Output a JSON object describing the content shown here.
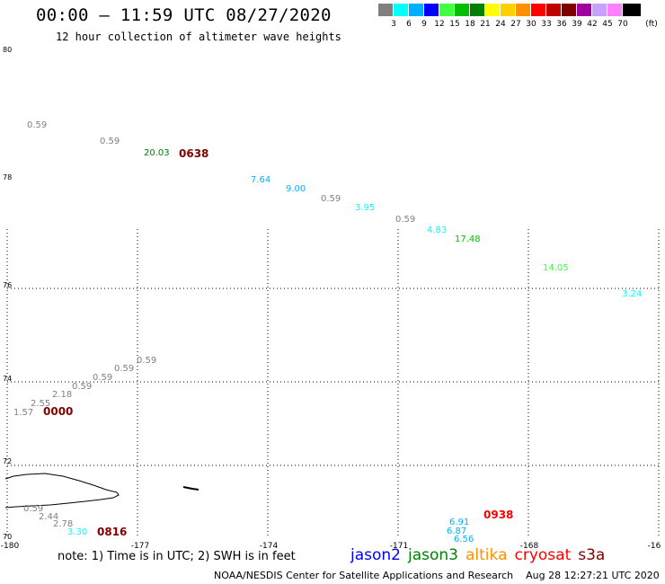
{
  "header": {
    "title": "00:00 – 11:59 UTC 08/27/2020",
    "subtitle": "12 hour collection of altimeter wave heights"
  },
  "legend": {
    "unit": "(ft)",
    "bins": [
      {
        "label": "3",
        "color": "#808080"
      },
      {
        "label": "6",
        "color": "#00ffff"
      },
      {
        "label": "9",
        "color": "#00b0ff"
      },
      {
        "label": "12",
        "color": "#0000ff"
      },
      {
        "label": "15",
        "color": "#40ff40"
      },
      {
        "label": "18",
        "color": "#00c000"
      },
      {
        "label": "21",
        "color": "#008000"
      },
      {
        "label": "24",
        "color": "#ffff00"
      },
      {
        "label": "27",
        "color": "#ffd000"
      },
      {
        "label": "30",
        "color": "#ff9000"
      },
      {
        "label": "33",
        "color": "#ff0000"
      },
      {
        "label": "36",
        "color": "#c00000"
      },
      {
        "label": "39",
        "color": "#800000"
      },
      {
        "label": "42",
        "color": "#a000a0"
      },
      {
        "label": "45",
        "color": "#c8a0ff"
      },
      {
        "label": "70",
        "color": "#ff80ff"
      },
      {
        "label": "",
        "color": "#000000"
      }
    ]
  },
  "map": {
    "lat_labels": [
      "80",
      "78",
      "76",
      "74",
      "72",
      "70"
    ],
    "lon_labels": [
      "-180",
      "-177",
      "-174",
      "-171",
      "-168",
      "-16"
    ],
    "wave_heights": [
      {
        "text": "0.59",
        "color": "#808080"
      },
      {
        "text": "0.59",
        "color": "#808080"
      },
      {
        "text": "20.03",
        "color": "#008000"
      },
      {
        "text": "7.64",
        "color": "#00b0ff"
      },
      {
        "text": "9.00",
        "color": "#00b0ff"
      },
      {
        "text": "0.59",
        "color": "#808080"
      },
      {
        "text": "3.95",
        "color": "#00ffff"
      },
      {
        "text": "0.59",
        "color": "#808080"
      },
      {
        "text": "4.83",
        "color": "#00ffff"
      },
      {
        "text": "17.48",
        "color": "#00c000"
      },
      {
        "text": "14.05",
        "color": "#40ff40"
      },
      {
        "text": "3.24",
        "color": "#00ffff"
      },
      {
        "text": "0.59",
        "color": "#808080"
      },
      {
        "text": "0.59",
        "color": "#808080"
      },
      {
        "text": "0.59",
        "color": "#808080"
      },
      {
        "text": "0.59",
        "color": "#808080"
      },
      {
        "text": "2.18",
        "color": "#808080"
      },
      {
        "text": "2.55",
        "color": "#808080"
      },
      {
        "text": "1.57",
        "color": "#808080"
      },
      {
        "text": "0.59",
        "color": "#808080"
      },
      {
        "text": "2.44",
        "color": "#808080"
      },
      {
        "text": "2.78",
        "color": "#808080"
      },
      {
        "text": "3.30",
        "color": "#00ffff"
      },
      {
        "text": "6.56",
        "color": "#00b0ff"
      },
      {
        "text": "6.91",
        "color": "#00b0ff"
      },
      {
        "text": "6.87",
        "color": "#00b0ff"
      }
    ],
    "pass_times": [
      {
        "text": "0638",
        "color": "#800000"
      },
      {
        "text": "0000",
        "color": "#800000"
      },
      {
        "text": "0816",
        "color": "#800000"
      },
      {
        "text": "0938",
        "color": "#ff0000"
      }
    ]
  },
  "footer": {
    "note": "note: 1) Time is in UTC; 2) SWH is in feet",
    "satellites": [
      {
        "name": "jason2",
        "color": "#0000ff"
      },
      {
        "name": "jason3",
        "color": "#008000"
      },
      {
        "name": "altika",
        "color": "#ff9000"
      },
      {
        "name": "cryosat",
        "color": "#ff0000"
      },
      {
        "name": "s3a",
        "color": "#800000"
      }
    ],
    "credit": "NOAA/NESDIS Center for Satellite Applications and Research",
    "timestamp": "Aug 28 12:27:21 UTC 2020"
  }
}
